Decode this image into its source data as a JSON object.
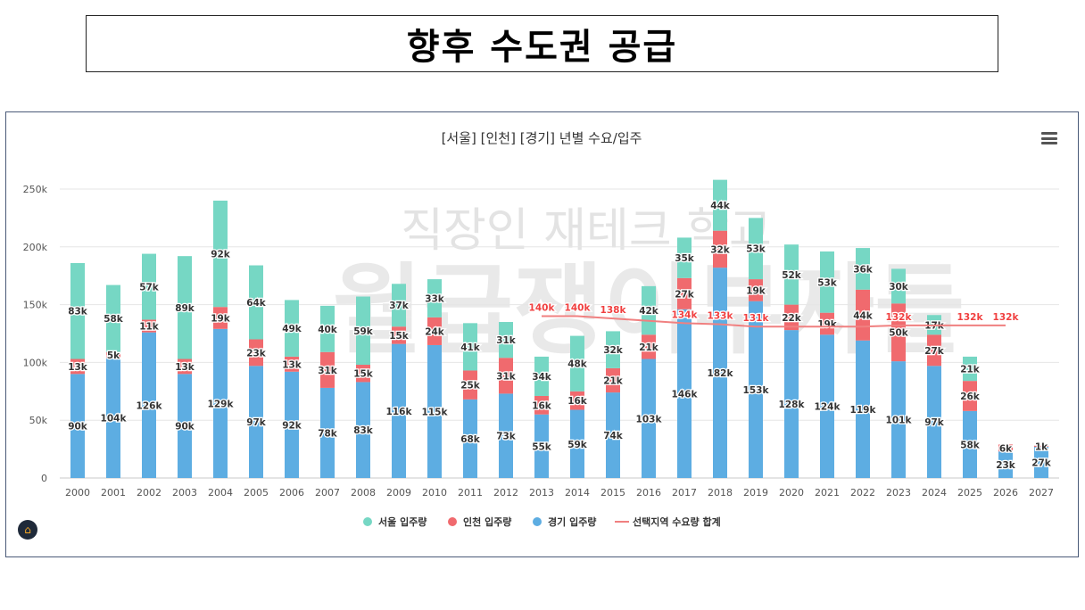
{
  "page_title": "향후 수도권 공급",
  "watermark": {
    "line1": "직장인 재테크 학교",
    "line2": "월급쟁이부자들"
  },
  "icons": {
    "menu": "hamburger-menu-icon",
    "logo": "house-chart-logo-icon"
  },
  "chart_data": {
    "type": "bar",
    "stacked": true,
    "title": "[서울] [인천] [경기] 년별 수요/입주",
    "xlabel": "",
    "ylabel": "",
    "ylim": [
      0,
      250000
    ],
    "yticks": [
      0,
      50000,
      100000,
      150000,
      200000,
      250000
    ],
    "ytick_labels": [
      "0",
      "50k",
      "100k",
      "150k",
      "200k",
      "250k"
    ],
    "grid": true,
    "legend_position": "bottom",
    "categories": [
      "2000",
      "2001",
      "2002",
      "2003",
      "2004",
      "2005",
      "2006",
      "2007",
      "2008",
      "2009",
      "2010",
      "2011",
      "2012",
      "2013",
      "2014",
      "2015",
      "2016",
      "2017",
      "2018",
      "2019",
      "2020",
      "2021",
      "2022",
      "2023",
      "2024",
      "2025",
      "2026",
      "2027"
    ],
    "series": [
      {
        "name": "경기 입주량",
        "color": "#5dade2",
        "values": [
          90,
          104,
          126,
          90,
          129,
          97,
          92,
          78,
          83,
          116,
          115,
          68,
          73,
          55,
          59,
          74,
          103,
          146,
          182,
          153,
          128,
          124,
          119,
          101,
          97,
          58,
          23,
          27
        ],
        "labels": [
          "90k",
          "104k",
          "126k",
          "90k",
          "129k",
          "97k",
          "92k",
          "78k",
          "83k",
          "116k",
          "115k",
          "68k",
          "73k",
          "55k",
          "59k",
          "74k",
          "103k",
          "146k",
          "182k",
          "153k",
          "128k",
          "124k",
          "119k",
          "101k",
          "97k",
          "58k",
          "23k",
          "27k"
        ]
      },
      {
        "name": "인천 입주량",
        "color": "#f06a6e",
        "values": [
          13,
          5,
          11,
          13,
          19,
          23,
          13,
          31,
          15,
          15,
          24,
          25,
          31,
          16,
          16,
          21,
          21,
          27,
          32,
          19,
          22,
          19,
          44,
          50,
          27,
          26,
          6,
          1
        ],
        "labels": [
          "13k",
          "5k",
          "11k",
          "13k",
          "19k",
          "23k",
          "13k",
          "31k",
          "15k",
          "15k",
          "24k",
          "25k",
          "31k",
          "16k",
          "16k",
          "21k",
          "21k",
          "27k",
          "32k",
          "19k",
          "22k",
          "19k",
          "44k",
          "50k",
          "27k",
          "26k",
          "6k",
          "1k"
        ]
      },
      {
        "name": "서울 입주량",
        "color": "#76d7c4",
        "values": [
          83,
          58,
          57,
          89,
          92,
          64,
          49,
          40,
          59,
          37,
          33,
          41,
          31,
          34,
          48,
          32,
          42,
          35,
          44,
          53,
          52,
          53,
          36,
          30,
          17,
          21,
          0,
          0
        ],
        "labels": [
          "83k",
          "58k",
          "57k",
          "89k",
          "92k",
          "64k",
          "49k",
          "40k",
          "59k",
          "37k",
          "33k",
          "41k",
          "31k",
          "34k",
          "48k",
          "32k",
          "42k",
          "35k",
          "44k",
          "53k",
          "52k",
          "53k",
          "36k",
          "30k",
          "17k",
          "21k",
          "",
          ""
        ]
      }
    ],
    "value_unit": "k",
    "line": {
      "name": "선택지역 수요량 합계",
      "color": "#f08080",
      "x": [
        "2013",
        "2014",
        "2015",
        "2016",
        "2017",
        "2018",
        "2019",
        "2020",
        "2021",
        "2022",
        "2023",
        "2024",
        "2025",
        "2026"
      ],
      "values": [
        140,
        140,
        138,
        136,
        134,
        133,
        131,
        131,
        131,
        131,
        132,
        132,
        132,
        132
      ],
      "labels": [
        "140k",
        "140k",
        "138k",
        "",
        "134k",
        "133k",
        "131k",
        "",
        "",
        "",
        "132k",
        "",
        "132k",
        "132k"
      ]
    },
    "legend": [
      {
        "name": "서울 입주량",
        "color": "#76d7c4",
        "shape": "circle"
      },
      {
        "name": "인천 입주량",
        "color": "#f06a6e",
        "shape": "circle"
      },
      {
        "name": "경기 입주량",
        "color": "#5dade2",
        "shape": "circle"
      },
      {
        "name": "선택지역 수요량 합계",
        "color": "#f08080",
        "shape": "line"
      }
    ]
  }
}
